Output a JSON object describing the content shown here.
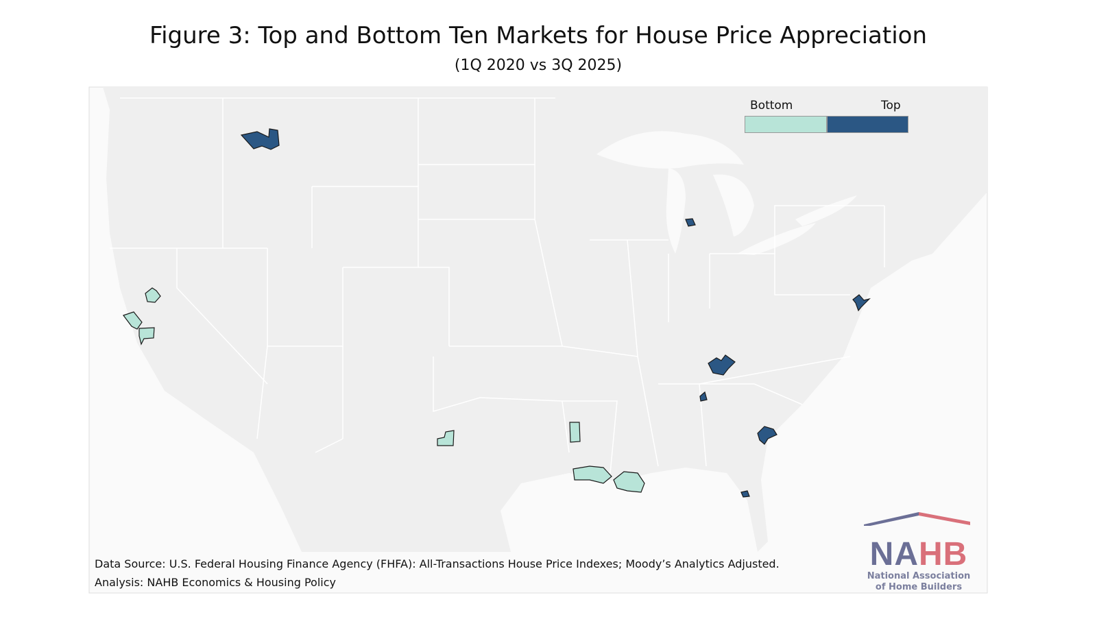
{
  "header": {
    "title": "Figure 3: Top and Bottom Ten Markets for House Price Appreciation",
    "subtitle": "(1Q 2020 vs 3Q 2025)"
  },
  "legend": {
    "bottom_label": "Bottom",
    "top_label": "Top",
    "bottom_color": "#b8e4d8",
    "top_color": "#2b5784"
  },
  "map": {
    "land_color": "#efefef",
    "water_color": "#fafafa",
    "border_color": "#ffffff"
  },
  "footer": {
    "source": "Data Source: U.S. Federal Housing Finance Agency (FHFA): All-Transactions House Price Indexes; Moody’s Analytics Adjusted.",
    "analysis": "Analysis: NAHB Economics & Housing Policy"
  },
  "logo": {
    "letters": "NAHB",
    "line1": "National Association",
    "line2": "of Home Builders"
  }
}
